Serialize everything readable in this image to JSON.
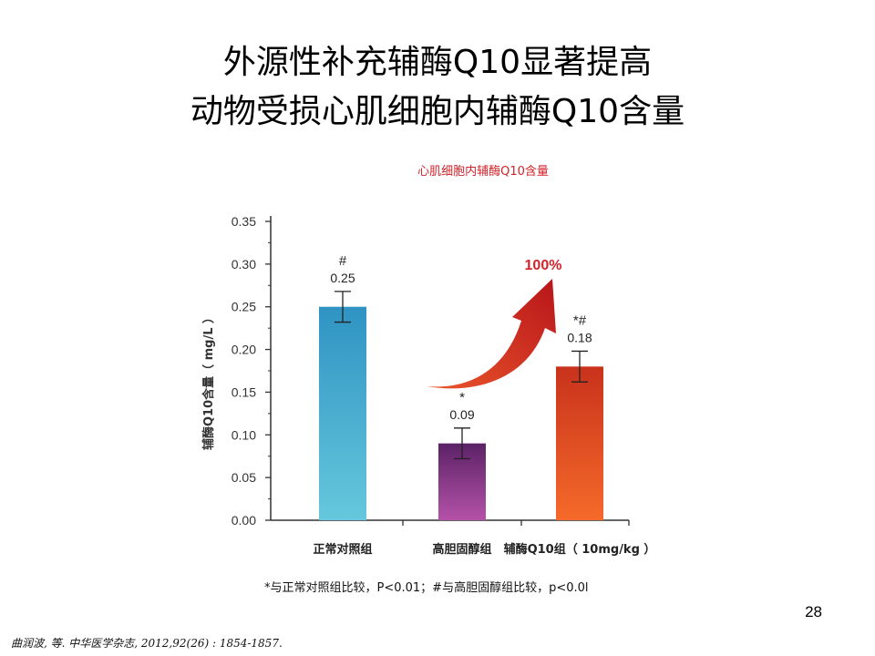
{
  "slide": {
    "title_line1": "外源性补充辅酶Q10显著提高",
    "title_line2": "动物受损心肌细胞内辅酶Q10含量",
    "page_number": "28",
    "citation": "曲润波, 等. 中华医学杂志, 2012,92(26) : 1854-1857.",
    "footnote": "*与正常对照组比较，P<0.01；#与高胆固醇组比较，p<0.0l"
  },
  "chart_data": {
    "type": "bar",
    "title": "心肌细胞内辅酶Q10含量",
    "ylabel": "辅酶Q10含量（ mg/L ）",
    "xlabel": "",
    "ylim": [
      0,
      0.35
    ],
    "yticks": [
      "0.00",
      "0.05",
      "0.10",
      "0.15",
      "0.20",
      "0.25",
      "0.30",
      "0.35"
    ],
    "categories": [
      "正常对照组",
      "高胆固醇组",
      "辅酶Q10组（ 10mg/kg ）"
    ],
    "values": [
      0.25,
      0.09,
      0.18
    ],
    "value_labels": [
      "0.25",
      "0.09",
      "0.18"
    ],
    "significance": [
      "#",
      "*",
      "*#"
    ],
    "error_bars": [
      0.018,
      0.018,
      0.018
    ],
    "colors": [
      "#3fa7cf",
      "#7a2d7c",
      "#e0411e"
    ],
    "annotation": "100%",
    "annotation_color": "#d2232a"
  }
}
